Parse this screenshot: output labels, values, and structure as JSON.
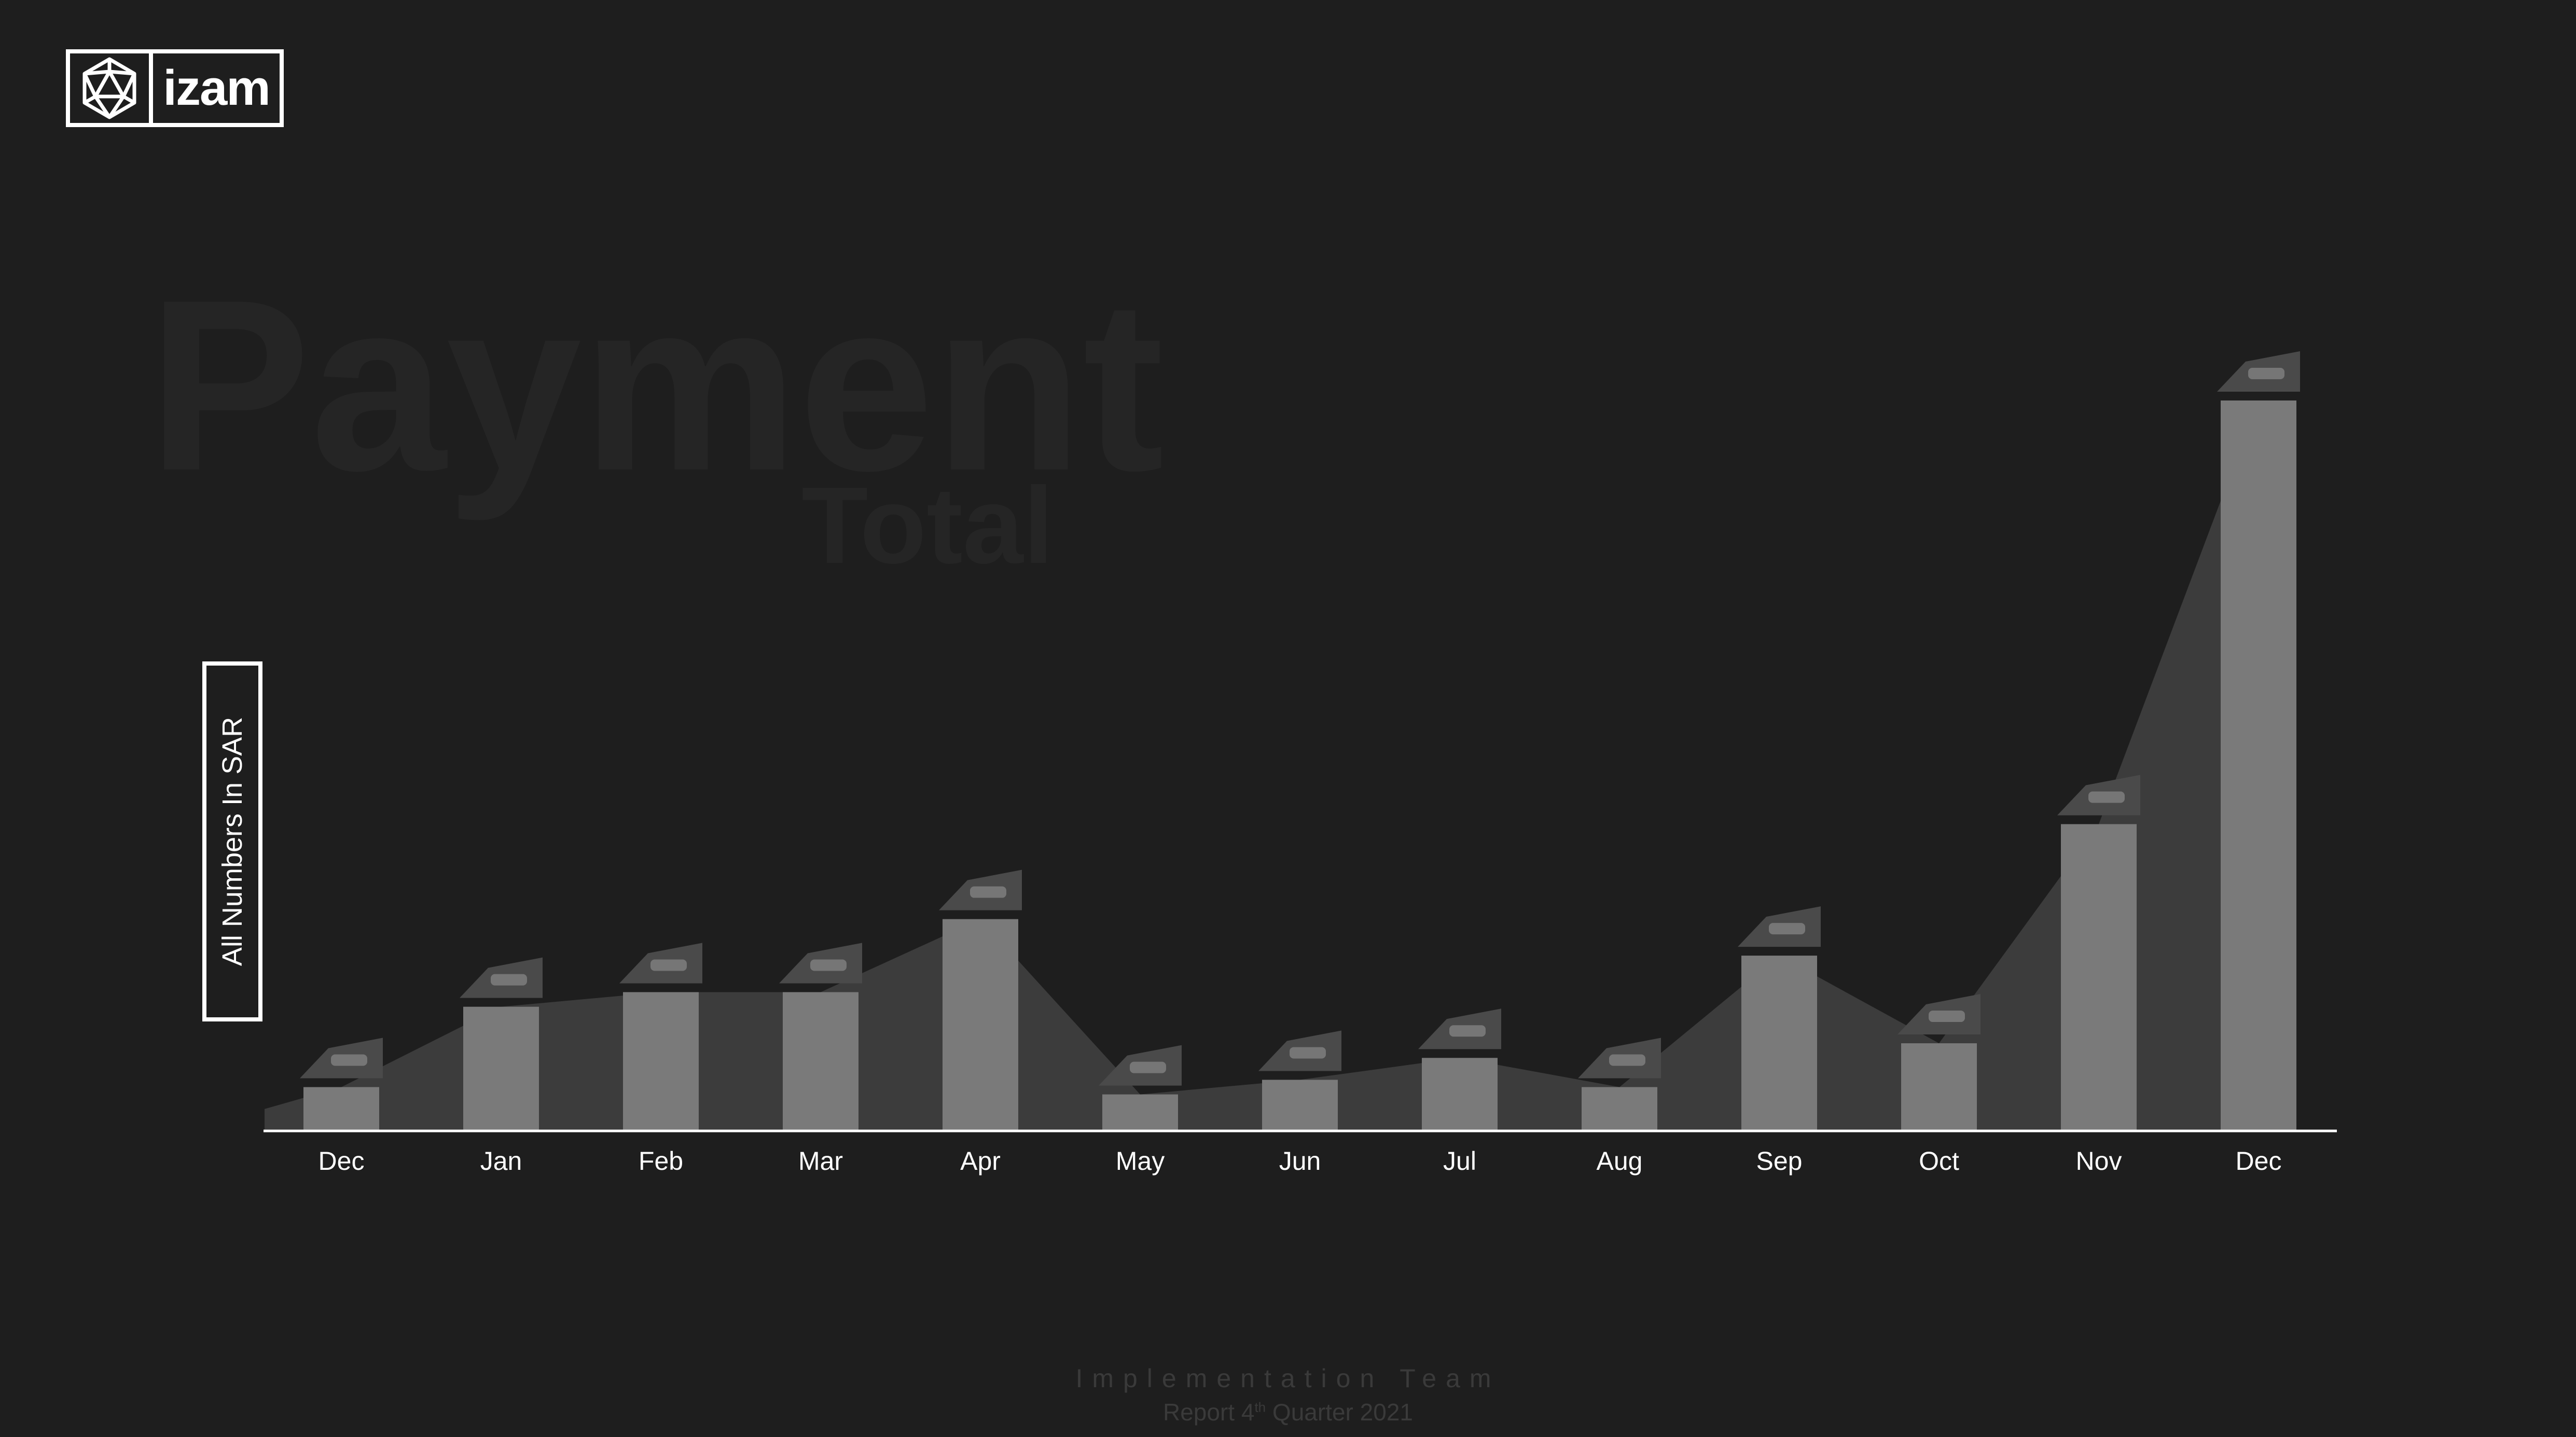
{
  "brand": {
    "name": "izam",
    "logo_icon": "icosahedron-icon"
  },
  "watermark": {
    "title": "Payment",
    "subtitle": "Total"
  },
  "unit_label": "All Numbers In SAR",
  "footer": {
    "team": "Implementation Team",
    "report_prefix": "Report",
    "quarter_number": "4",
    "quarter_suffix": "th",
    "quarter_rest": "Quarter 2021"
  },
  "colors": {
    "background": "#1e1e1e",
    "bar": "#7a7a7a",
    "area": "#3c3c3c",
    "axis": "#ffffff",
    "label_tag": "#4a4a4a"
  },
  "chart_data": {
    "type": "bar",
    "categories": [
      "Dec",
      "Jan",
      "Feb",
      "Mar",
      "Apr",
      "May",
      "Jun",
      "Jul",
      "Aug",
      "Sep",
      "Oct",
      "Nov",
      "Dec"
    ],
    "series": [
      {
        "values": [
          6,
          17,
          19,
          19,
          29,
          5,
          7,
          10,
          6,
          24,
          12,
          42,
          100
        ]
      }
    ],
    "ylim": [
      0,
      100
    ],
    "data_labels_obscured": true,
    "grid": false,
    "legend": "none"
  }
}
